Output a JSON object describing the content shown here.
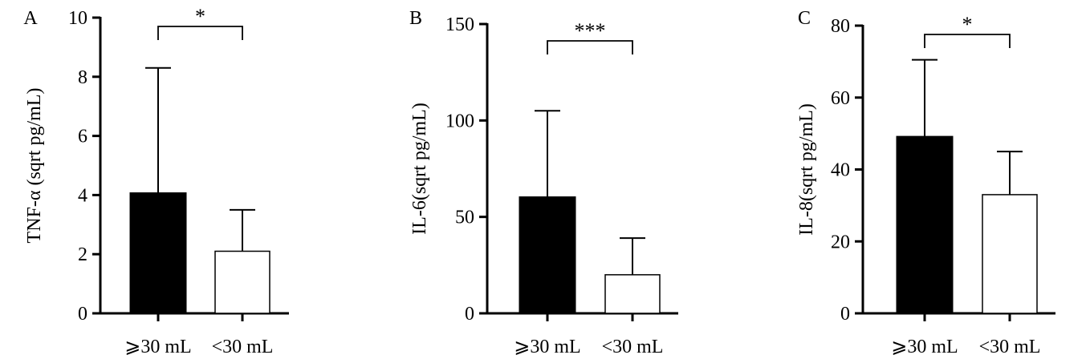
{
  "chart_data": [
    {
      "panel": "A",
      "type": "bar",
      "categories": [
        "⩾30 mL",
        "<30 mL"
      ],
      "series": [
        {
          "values": [
            4.05,
            2.1
          ],
          "errors": [
            4.25,
            1.4
          ]
        }
      ],
      "bar_colors": [
        "#000000",
        "#ffffff"
      ],
      "ylabel": "TNF-α (sqrt pg/mL)",
      "ylim": [
        0,
        10
      ],
      "yticks": [
        0,
        2,
        4,
        6,
        8,
        10
      ],
      "significance": "*"
    },
    {
      "panel": "B",
      "type": "bar",
      "categories": [
        "⩾30 mL",
        "<30 mL"
      ],
      "series": [
        {
          "values": [
            60,
            20
          ],
          "errors": [
            45,
            19
          ]
        }
      ],
      "bar_colors": [
        "#000000",
        "#ffffff"
      ],
      "ylabel": "IL-6(sqrt pg/mL)",
      "ylim": [
        0,
        150
      ],
      "yticks": [
        0,
        50,
        100,
        150
      ],
      "significance": "***"
    },
    {
      "panel": "C",
      "type": "bar",
      "categories": [
        "⩾30 mL",
        "<30 mL"
      ],
      "series": [
        {
          "values": [
            49,
            33
          ],
          "errors": [
            21.5,
            12
          ]
        }
      ],
      "bar_colors": [
        "#000000",
        "#ffffff"
      ],
      "ylabel": "IL-8(sqrt pg/mL)",
      "ylim": [
        0,
        80
      ],
      "yticks": [
        0,
        20,
        40,
        60,
        80
      ],
      "significance": "*"
    }
  ]
}
